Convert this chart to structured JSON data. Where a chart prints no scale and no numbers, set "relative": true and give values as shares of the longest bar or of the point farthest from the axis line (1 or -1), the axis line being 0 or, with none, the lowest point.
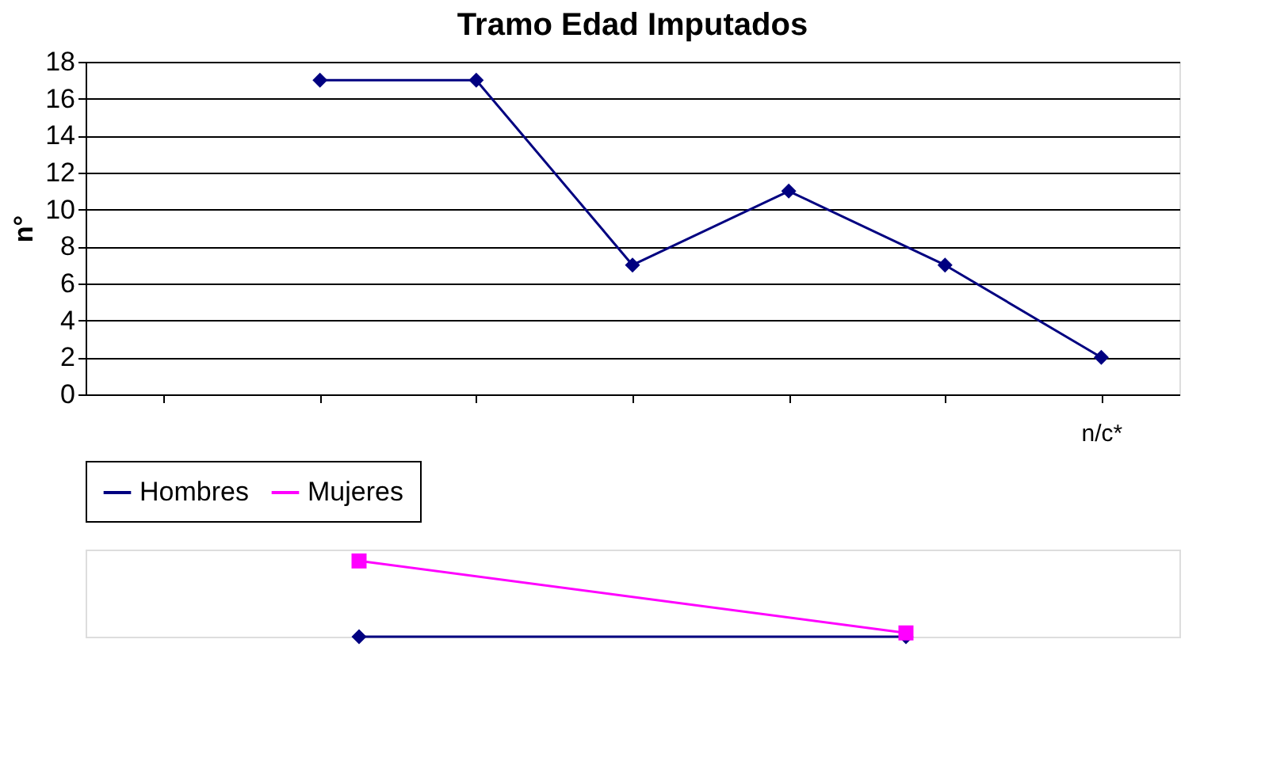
{
  "chart_data": [
    {
      "type": "line",
      "title": "Tramo Edad Imputados",
      "ylabel": "n°",
      "categories": [
        null,
        null,
        null,
        null,
        null,
        null,
        "n/c*"
      ],
      "ylim": [
        0,
        18
      ],
      "yticks": [
        0,
        2,
        4,
        6,
        8,
        10,
        12,
        14,
        16,
        18
      ],
      "grid": "y",
      "legend": false,
      "marker": "diamond",
      "series": [
        {
          "color": "#000080",
          "values": [
            null,
            17,
            17,
            7,
            11,
            7,
            2
          ]
        }
      ]
    },
    {
      "type": "line",
      "relative": true,
      "categories": [
        null,
        null
      ],
      "legend": "top",
      "series": [
        {
          "name": "Hombres",
          "color": "#000080",
          "marker": "diamond",
          "values": [
            0,
            0
          ]
        },
        {
          "name": "Mujeres",
          "color": "#ff00ff",
          "marker": "square",
          "values": [
            1,
            0.05
          ]
        }
      ]
    }
  ]
}
